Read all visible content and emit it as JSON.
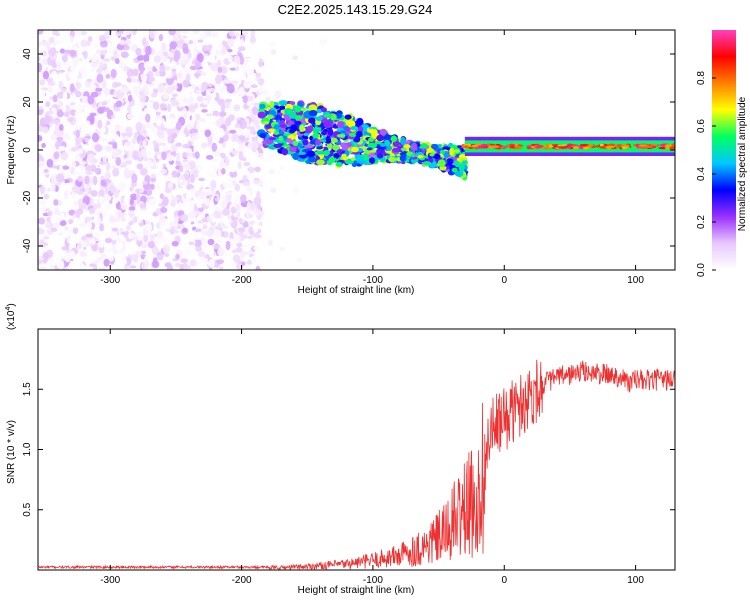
{
  "title": "C2E2.2025.143.15.29.G24",
  "chart_data": [
    {
      "type": "heatmap",
      "xlabel": "Height of straight line (km)",
      "ylabel": "Frequency (Hz)",
      "xlim": [
        -355,
        130
      ],
      "ylim": [
        -50,
        50
      ],
      "xticks": [
        -300,
        -200,
        -100,
        0,
        100
      ],
      "yticks": [
        -40,
        -20,
        0,
        20,
        40
      ],
      "colorbar": {
        "label": "Normalized spectral amplitude",
        "range": [
          0,
          1
        ],
        "ticks": [
          "0.0",
          "0.2",
          "0.4",
          "0.6",
          "0.8"
        ],
        "colors": [
          "#ffffff",
          "#e8c8ff",
          "#9a30ff",
          "#0000ff",
          "#00c8ff",
          "#00ff60",
          "#ffff00",
          "#ff8000",
          "#ff0000",
          "#ff40c0"
        ]
      },
      "regions": [
        {
          "x_from": -355,
          "x_to": -185,
          "description_values": {
            "freq_from": -50,
            "freq_to": 50,
            "amplitude_max": 0.15
          }
        },
        {
          "x_from": -185,
          "x_to": -30,
          "description_values": {
            "freq_center_start": 11,
            "freq_center_end": -5,
            "amplitude_max": 0.5
          }
        },
        {
          "x_from": -30,
          "x_to": 130,
          "description_values": {
            "freq_center": 1.5,
            "amplitude_max": 1.0
          }
        }
      ]
    },
    {
      "type": "line",
      "xlabel": "Height of straight line (km)",
      "ylabel": "SNR (10 * v/v)",
      "multiplier": "(x10",
      "multiplier_exp": "4",
      "multiplier_close": ")",
      "xlim": [
        -355,
        130
      ],
      "ylim": [
        0,
        2.0
      ],
      "xticks": [
        -300,
        -200,
        -100,
        0,
        100
      ],
      "yticks": [
        "0.5",
        "1.0",
        "1.5"
      ],
      "series": [
        {
          "color": "#ee3030",
          "x": [
            -355,
            -300,
            -250,
            -200,
            -170,
            -150,
            -120,
            -100,
            -80,
            -60,
            -45,
            -35,
            -25,
            -20,
            -15,
            -10,
            0,
            10,
            20,
            30,
            40,
            50,
            60,
            70,
            80,
            90,
            95,
            100,
            110,
            120,
            130
          ],
          "y": [
            0.02,
            0.02,
            0.02,
            0.02,
            0.02,
            0.03,
            0.05,
            0.08,
            0.12,
            0.2,
            0.3,
            0.45,
            0.55,
            0.55,
            0.9,
            1.15,
            1.25,
            1.35,
            1.45,
            1.55,
            1.6,
            1.62,
            1.65,
            1.63,
            1.62,
            1.6,
            1.55,
            1.58,
            1.57,
            1.58,
            1.58
          ]
        }
      ]
    }
  ]
}
